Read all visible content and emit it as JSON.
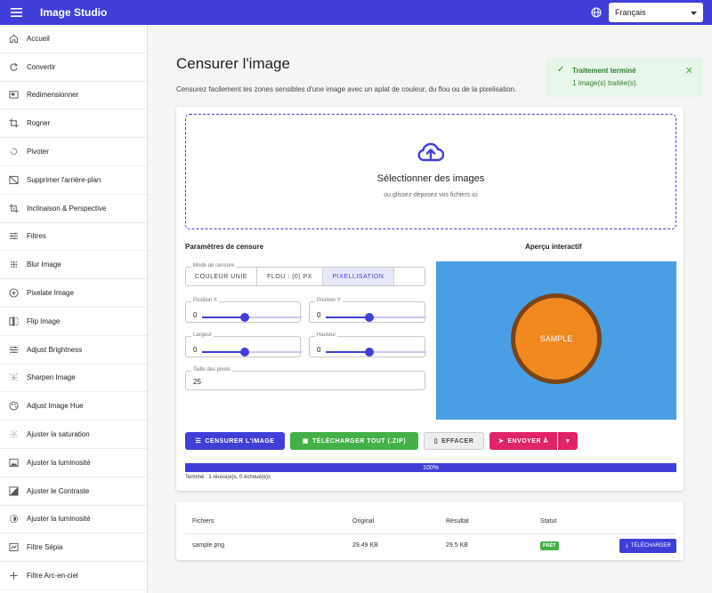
{
  "appbar": {
    "title": "Image Studio",
    "language": "Français"
  },
  "sidebar": {
    "items": [
      {
        "label": "Accueil",
        "icon": "home-icon"
      },
      {
        "label": "Convertir",
        "icon": "refresh-icon"
      },
      {
        "label": "Redimensionner",
        "icon": "resize-icon"
      },
      {
        "label": "Rogner",
        "icon": "crop-icon"
      },
      {
        "label": "Pivoter",
        "icon": "rotate-icon"
      },
      {
        "label": "Supprimer l'arrière-plan",
        "icon": "hide-image-icon"
      },
      {
        "label": "Inclinaison & Perspective",
        "icon": "transform-icon"
      },
      {
        "label": "Filtres",
        "icon": "tune-icon"
      },
      {
        "label": "Blur Image",
        "icon": "blur-icon"
      },
      {
        "label": "Pixelate Image",
        "icon": "add-circle-icon"
      },
      {
        "label": "Flip Image",
        "icon": "flip-icon"
      },
      {
        "label": "Adjust Brightness",
        "icon": "tune-icon"
      },
      {
        "label": "Sharpen Image",
        "icon": "grid-icon"
      },
      {
        "label": "Adjust Image Hue",
        "icon": "palette-icon"
      },
      {
        "label": "Ajuster la saturation",
        "icon": "saturation-icon"
      },
      {
        "label": "Ajuster la luminosité",
        "icon": "image-icon"
      },
      {
        "label": "Ajuster le Contraste",
        "icon": "contrast-icon"
      },
      {
        "label": "Ajuster la luminosité",
        "icon": "brightness-icon"
      },
      {
        "label": "Filtre Sépia",
        "icon": "photo-filter-icon"
      },
      {
        "label": "Filtre Arc-en-ciel",
        "icon": "plus-icon"
      }
    ]
  },
  "page": {
    "title": "Censurer l'image",
    "description": "Censurez facilement les zones sensibles d'une image avec un aplat de couleur, du flou ou de la pixelisation."
  },
  "toast": {
    "title": "Traitement terminé",
    "message": "1 image(s) traitée(s)."
  },
  "dropzone": {
    "title": "Sélectionner des images",
    "subtitle": "ou glissez-déposez vos fichiers ici"
  },
  "params": {
    "title": "Paramètres de censure",
    "mode_label": "Mode de censure",
    "modes": [
      "COULEUR UNIE",
      "FLOU : (0) PX",
      "PIXELLISATION"
    ],
    "active_mode": "PIXELLISATION",
    "pos_x_label": "Position X",
    "pos_x_value": "0",
    "pos_x_level": 0.43,
    "pos_y_label": "Position Y",
    "pos_y_value": "0",
    "pos_y_level": 0.43,
    "width_label": "Largeur",
    "width_value": "0",
    "width_level": 0.43,
    "height_label": "Hauteur",
    "height_value": "0",
    "height_level": 0.43,
    "pixel_label": "Taille des pixels",
    "pixel_value": "25"
  },
  "preview": {
    "title": "Aperçu interactif",
    "sample_text": "SAMPLE",
    "bg_color": "#4a9ee3",
    "circle_color": "#f0891f"
  },
  "actions": {
    "censor": "CENSURER L'IMAGE",
    "download_all": "TÉLÉCHARGER TOUT (.ZIP)",
    "clear": "EFFACER",
    "send_to": "ENVOYER À"
  },
  "progress": {
    "percent_label": "100%",
    "percent": 100,
    "status": "Terminé : 1 réussi(e)s, 0 échoué(e)s"
  },
  "files": {
    "headers": {
      "file": "Fichiers",
      "original": "Original",
      "result": "Résultat",
      "status": "Statut"
    },
    "rows": [
      {
        "name": "sample.png",
        "original": "29,49 KB",
        "result": "29,5 KB",
        "status": "PRÊT",
        "action": "TÉLÉCHARGER"
      }
    ]
  },
  "colors": {
    "primary": "#3f3fd8",
    "success": "#43b048",
    "danger": "#e0246a"
  }
}
